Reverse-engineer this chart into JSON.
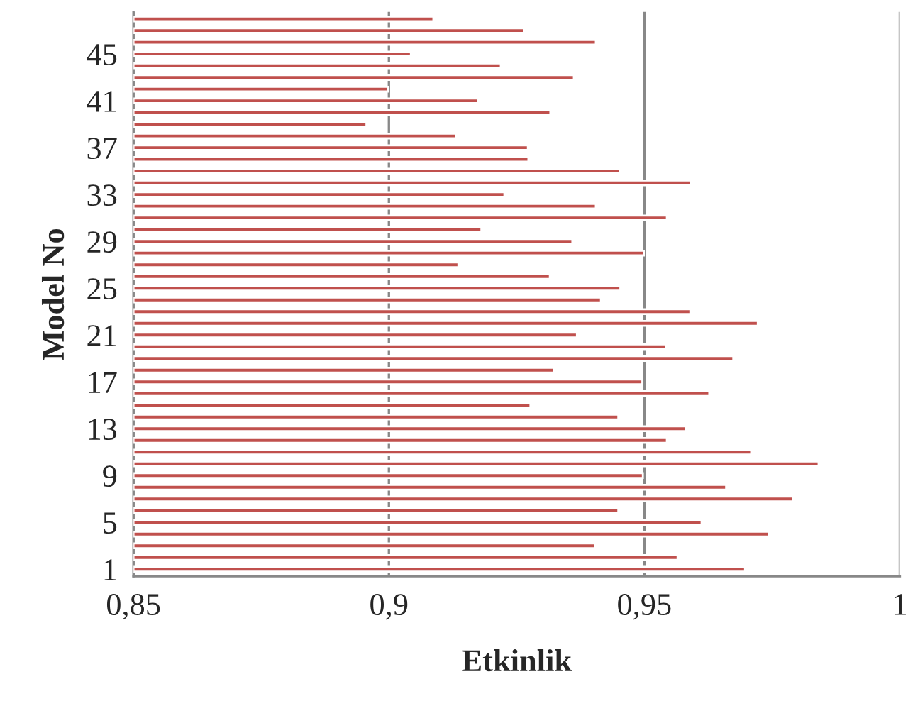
{
  "chart_data": {
    "type": "bar",
    "orientation": "horizontal",
    "xlabel": "Etkinlik",
    "ylabel": "Model No",
    "categories": [
      null,
      null,
      null,
      "45",
      null,
      null,
      null,
      "41",
      null,
      null,
      null,
      "37",
      null,
      null,
      null,
      "33",
      null,
      null,
      null,
      "29",
      null,
      null,
      null,
      "25",
      null,
      null,
      null,
      "21",
      null,
      null,
      null,
      "17",
      null,
      null,
      null,
      "13",
      null,
      null,
      null,
      "9",
      null,
      null,
      null,
      "5",
      null,
      null,
      null,
      "1"
    ],
    "values": [
      0.9087,
      0.9264,
      0.9405,
      0.9043,
      0.9219,
      0.9362,
      0.8998,
      0.9175,
      0.9316,
      0.8956,
      0.9131,
      0.9272,
      0.9273,
      0.9452,
      0.9591,
      0.9226,
      0.9405,
      0.9544,
      0.9181,
      0.9359,
      0.9499,
      0.9136,
      0.9315,
      0.9453,
      0.9415,
      0.959,
      0.9722,
      0.9368,
      0.9543,
      0.9674,
      0.9323,
      0.9496,
      0.9627,
      0.9277,
      0.9449,
      0.9581,
      0.9544,
      0.9709,
      0.9841,
      0.9497,
      0.966,
      0.9791,
      0.9449,
      0.9612,
      0.9744,
      0.9403,
      0.9565,
      0.9697
    ],
    "color": "#c0504d",
    "xlim": [
      0.85,
      1
    ],
    "xticks": [
      {
        "value": 0.85,
        "label": "0,85"
      },
      {
        "value": 0.9,
        "label": "0,9"
      },
      {
        "value": 0.95,
        "label": "0,95"
      },
      {
        "value": 1,
        "label": "1"
      }
    ],
    "grid": "x"
  }
}
